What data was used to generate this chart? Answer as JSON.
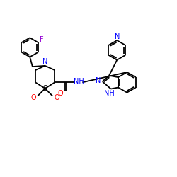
{
  "background_color": "#ffffff",
  "bond_color": "#000000",
  "atom_colors": {
    "N": "#0000ff",
    "O": "#ff0000",
    "S": "#000000",
    "F": "#9400d3",
    "H": "#0000ff",
    "C": "#000000"
  },
  "figsize": [
    2.5,
    2.5
  ],
  "dpi": 100,
  "lw": 1.3,
  "fs": 6.5
}
